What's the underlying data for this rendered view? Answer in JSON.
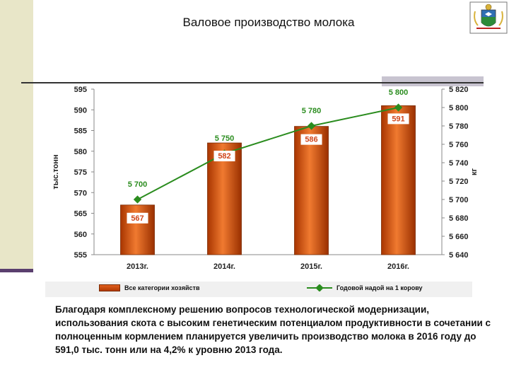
{
  "slide": {
    "title": "Валовое производство молока",
    "caption": "Благодаря комплексному решению вопросов технологической модернизации, использования скота с высоким генетическим потенциалом продуктивности в сочетании с полноценным кормлением планируется увеличить производство молока в 2016 году до 591,0 тыс. тонн или на 4,2% к уровню 2013 года."
  },
  "colors": {
    "bar": "#c94a0e",
    "bar_light": "#ef7a2e",
    "line": "#2a8c1e",
    "bar_label": "#d0451a",
    "line_label": "#2a8c1e"
  },
  "chart_data": {
    "type": "bar",
    "categories": [
      "2013г.",
      "2014г.",
      "2015г.",
      "2016г."
    ],
    "series": [
      {
        "name": "Все категории хозяйств",
        "type": "bar",
        "axis": "left",
        "values": [
          567,
          582,
          586,
          591
        ],
        "labels": [
          "567",
          "582",
          "586",
          "591"
        ]
      },
      {
        "name": "Годовой надой на 1 корову",
        "type": "line",
        "axis": "right",
        "values": [
          5700,
          5750,
          5780,
          5800
        ],
        "labels": [
          "5 700",
          "5 750",
          "5 780",
          "5 800"
        ]
      }
    ],
    "ylabel": "тыс.тонн",
    "y2label": "кг",
    "ylim": [
      555,
      595
    ],
    "y2lim": [
      5640,
      5820
    ],
    "yticks": [
      "555",
      "560",
      "565",
      "570",
      "575",
      "580",
      "585",
      "590",
      "595"
    ],
    "y2ticks": [
      "5 640",
      "5 660",
      "5 680",
      "5 700",
      "5 720",
      "5 740",
      "5 760",
      "5 780",
      "5 800",
      "5 820"
    ],
    "grid": false,
    "legend": "bottom"
  }
}
